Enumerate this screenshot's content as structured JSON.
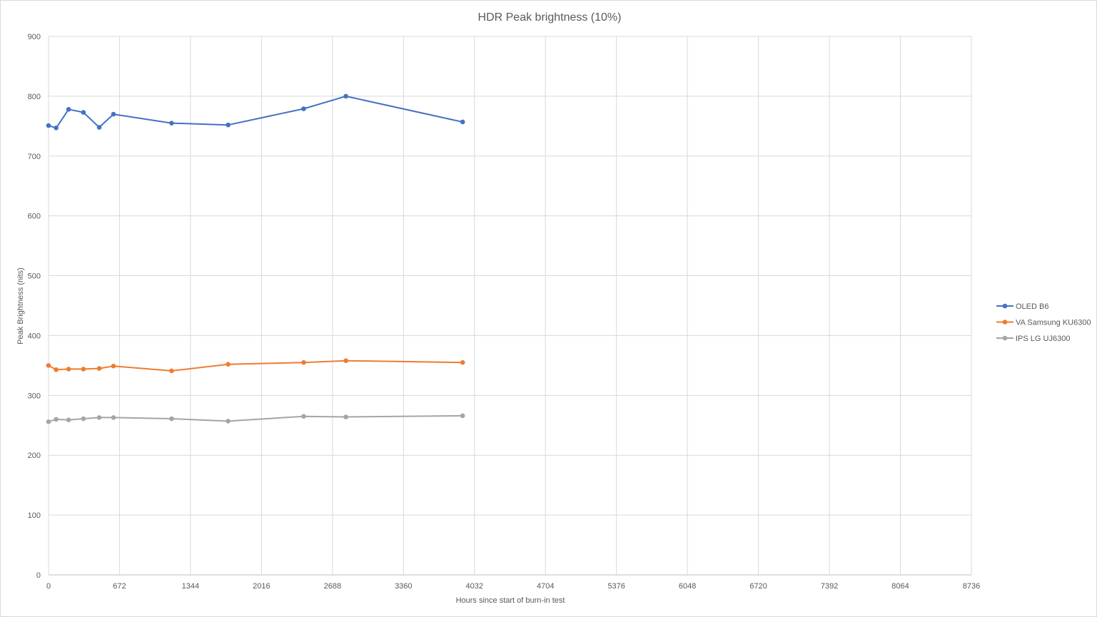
{
  "chart_data": {
    "type": "scatter",
    "title": "HDR Peak brightness (10%)",
    "xlabel": "Hours since start of burn-in test",
    "ylabel": "Peak Brightness (nits)",
    "xlim": [
      0,
      8736
    ],
    "ylim": [
      0,
      900
    ],
    "xticks": [
      0,
      672,
      1344,
      2016,
      2688,
      3360,
      4032,
      4704,
      5376,
      6048,
      6720,
      7392,
      8064,
      8736
    ],
    "yticks": [
      0,
      100,
      200,
      300,
      400,
      500,
      600,
      700,
      800,
      900
    ],
    "grid": true,
    "legend_position": "right",
    "series": [
      {
        "name": "OLED B6",
        "color": "#4472c4",
        "x": [
          0,
          72,
          190,
          330,
          480,
          615,
          1165,
          1700,
          2415,
          2815,
          3920
        ],
        "y": [
          751,
          747,
          778,
          773,
          748,
          770,
          755,
          752,
          779,
          800,
          757
        ]
      },
      {
        "name": "VA Samsung KU6300",
        "color": "#ed7d31",
        "x": [
          0,
          72,
          190,
          330,
          480,
          615,
          1165,
          1700,
          2415,
          2815,
          3920
        ],
        "y": [
          350,
          343,
          344,
          344,
          345,
          349,
          341,
          352,
          355,
          358,
          355
        ]
      },
      {
        "name": "IPS LG UJ6300",
        "color": "#a5a5a5",
        "x": [
          0,
          72,
          190,
          330,
          480,
          615,
          1165,
          1700,
          2415,
          2815,
          3920
        ],
        "y": [
          256,
          260,
          259,
          261,
          263,
          263,
          261,
          257,
          265,
          264,
          266
        ]
      }
    ]
  }
}
